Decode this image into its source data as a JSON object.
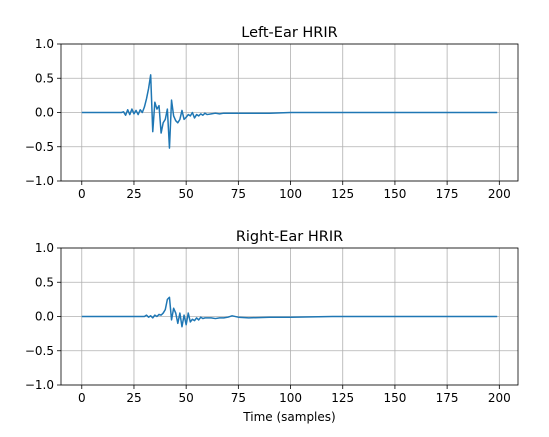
{
  "chart_data": [
    {
      "type": "line",
      "title": "Left-Ear HRIR",
      "xlabel": "",
      "ylabel": "",
      "xlim": [
        -9.95,
        208.95
      ],
      "ylim": [
        -1.0,
        1.0
      ],
      "xticks": [
        0,
        25,
        50,
        75,
        100,
        125,
        150,
        175,
        200
      ],
      "yticks": [
        -1.0,
        -0.5,
        0.0,
        0.5,
        1.0
      ],
      "ytick_labels": [
        "−1.0",
        "−0.5",
        "0.0",
        "0.5",
        "1.0"
      ],
      "grid": true,
      "color": "#1f77b4",
      "series": [
        {
          "x": [
            0,
            10,
            19,
            20,
            21,
            22,
            23,
            24,
            25,
            26,
            27,
            28,
            29,
            30,
            31,
            32,
            33,
            34,
            35,
            36,
            37,
            38,
            39,
            40,
            41,
            42,
            43,
            44,
            45,
            46,
            47,
            48,
            49,
            50,
            51,
            52,
            53,
            54,
            55,
            56,
            57,
            58,
            59,
            60,
            62,
            64,
            66,
            68,
            70,
            75,
            80,
            90,
            100,
            120,
            150,
            180,
            199
          ],
          "y": [
            0.0,
            0.0,
            0.0,
            0.01,
            -0.04,
            0.04,
            -0.03,
            0.05,
            -0.02,
            0.03,
            -0.03,
            0.04,
            0.0,
            0.08,
            0.2,
            0.35,
            0.55,
            -0.28,
            0.15,
            0.05,
            0.1,
            -0.3,
            -0.15,
            -0.1,
            0.05,
            -0.52,
            0.18,
            -0.05,
            -0.12,
            -0.15,
            -0.1,
            0.03,
            -0.1,
            -0.07,
            -0.03,
            -0.05,
            0.0,
            -0.08,
            -0.03,
            -0.05,
            -0.02,
            -0.04,
            -0.01,
            -0.03,
            -0.02,
            -0.01,
            -0.02,
            -0.01,
            -0.01,
            -0.01,
            -0.01,
            -0.01,
            0.0,
            0.0,
            0.0,
            0.0,
            0.0
          ]
        }
      ]
    },
    {
      "type": "line",
      "title": "Right-Ear HRIR",
      "xlabel": "Time (samples)",
      "ylabel": "",
      "xlim": [
        -9.95,
        208.95
      ],
      "ylim": [
        -1.0,
        1.0
      ],
      "xticks": [
        0,
        25,
        50,
        75,
        100,
        125,
        150,
        175,
        200
      ],
      "yticks": [
        -1.0,
        -0.5,
        0.0,
        0.5,
        1.0
      ],
      "ytick_labels": [
        "−1.0",
        "−0.5",
        "0.0",
        "0.5",
        "1.0"
      ],
      "grid": true,
      "color": "#1f77b4",
      "series": [
        {
          "x": [
            0,
            10,
            20,
            25,
            30,
            31,
            32,
            33,
            34,
            35,
            36,
            37,
            38,
            39,
            40,
            41,
            42,
            43,
            44,
            45,
            46,
            47,
            48,
            49,
            50,
            51,
            52,
            53,
            54,
            55,
            56,
            57,
            58,
            59,
            60,
            62,
            64,
            66,
            68,
            70,
            72,
            75,
            80,
            90,
            100,
            120,
            150,
            180,
            199
          ],
          "y": [
            0.0,
            0.0,
            0.0,
            0.0,
            0.0,
            0.02,
            -0.01,
            0.01,
            -0.02,
            0.02,
            0.0,
            0.03,
            0.02,
            0.05,
            0.1,
            0.25,
            0.28,
            -0.05,
            0.12,
            0.05,
            -0.1,
            0.05,
            -0.15,
            0.02,
            -0.12,
            0.05,
            -0.08,
            -0.04,
            -0.06,
            -0.02,
            -0.05,
            -0.01,
            -0.03,
            -0.02,
            -0.02,
            -0.02,
            -0.03,
            -0.02,
            -0.02,
            -0.01,
            0.01,
            -0.01,
            -0.02,
            -0.01,
            -0.01,
            0.0,
            0.0,
            0.0,
            0.0
          ]
        }
      ]
    }
  ]
}
